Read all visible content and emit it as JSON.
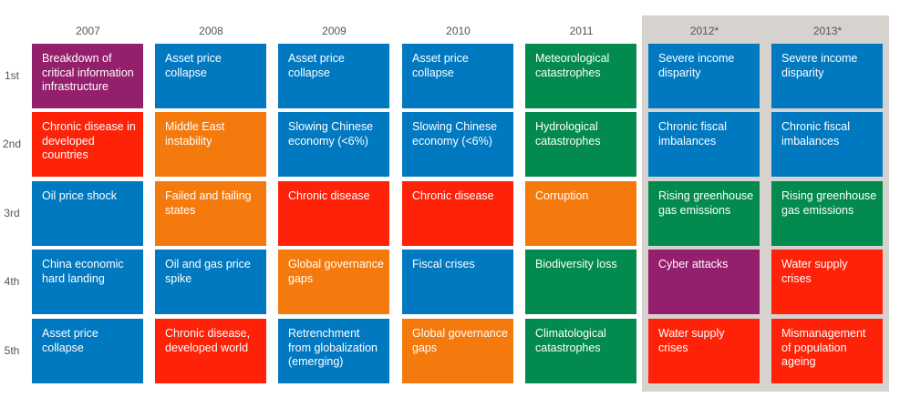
{
  "chart_data": {
    "type": "table",
    "colors": {
      "blue": "#0079c1",
      "red": "#fe2208",
      "orange": "#f57a0e",
      "green": "#038a4e",
      "purple": "#941f6c",
      "shade": "#d6d2ce"
    },
    "columns": [
      "2007",
      "2008",
      "2009",
      "2010",
      "2011",
      "2012*",
      "2013*"
    ],
    "shaded_columns": [
      5,
      6
    ],
    "rows": [
      "1st",
      "2nd",
      "3rd",
      "4th",
      "5th"
    ],
    "cells": [
      [
        {
          "text": "Breakdown of critical information infrastructure",
          "color": "purple"
        },
        {
          "text": "Chronic disease in developed countries",
          "color": "red"
        },
        {
          "text": "Oil price shock",
          "color": "blue"
        },
        {
          "text": "China economic hard landing",
          "color": "blue"
        },
        {
          "text": "Asset price collapse",
          "color": "blue"
        }
      ],
      [
        {
          "text": "Asset price collapse",
          "color": "blue"
        },
        {
          "text": "Middle East instability",
          "color": "orange"
        },
        {
          "text": "Failed and failing states",
          "color": "orange"
        },
        {
          "text": "Oil and gas price spike",
          "color": "blue"
        },
        {
          "text": "Chronic disease, developed world",
          "color": "red"
        }
      ],
      [
        {
          "text": "Asset price collapse",
          "color": "blue"
        },
        {
          "text": "Slowing Chinese economy (<6%)",
          "color": "blue"
        },
        {
          "text": "Chronic disease",
          "color": "red"
        },
        {
          "text": "Global governance gaps",
          "color": "orange"
        },
        {
          "text": "Retrenchment from globalization (emerging)",
          "color": "blue"
        }
      ],
      [
        {
          "text": "Asset price collapse",
          "color": "blue"
        },
        {
          "text": "Slowing Chinese economy (<6%)",
          "color": "blue"
        },
        {
          "text": "Chronic disease",
          "color": "red"
        },
        {
          "text": "Fiscal crises",
          "color": "blue"
        },
        {
          "text": "Global governance gaps",
          "color": "orange"
        }
      ],
      [
        {
          "text": "Meteorological catastrophes",
          "color": "green"
        },
        {
          "text": "Hydrological catastrophes",
          "color": "green"
        },
        {
          "text": "Corruption",
          "color": "orange"
        },
        {
          "text": "Biodiversity loss",
          "color": "green"
        },
        {
          "text": "Climatological catastrophes",
          "color": "green"
        }
      ],
      [
        {
          "text": "Severe income disparity",
          "color": "blue"
        },
        {
          "text": "Chronic fiscal imbalances",
          "color": "blue"
        },
        {
          "text": "Rising greenhouse gas emissions",
          "color": "green"
        },
        {
          "text": "Cyber attacks",
          "color": "purple"
        },
        {
          "text": "Water supply crises",
          "color": "red"
        }
      ],
      [
        {
          "text": "Severe income disparity",
          "color": "blue"
        },
        {
          "text": "Chronic fiscal imbalances",
          "color": "blue"
        },
        {
          "text": "Rising greenhouse gas emissions",
          "color": "green"
        },
        {
          "text": "Water supply crises",
          "color": "red"
        },
        {
          "text": "Mismanagement of population ageing",
          "color": "red"
        }
      ]
    ]
  }
}
